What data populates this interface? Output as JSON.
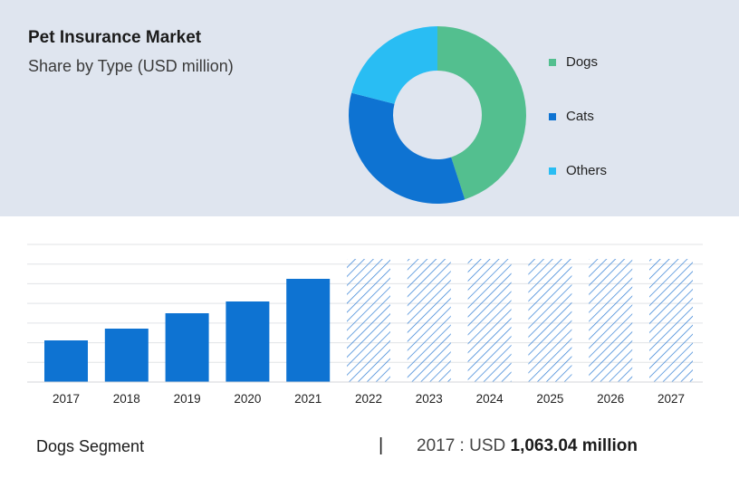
{
  "header": {
    "title": "Pet Insurance Market",
    "subtitle": "Share by Type (USD million)"
  },
  "colors": {
    "dogs": "#53bf8f",
    "cats": "#0e73d2",
    "others": "#29bdf3",
    "bar": "#0e73d2",
    "hatch": "#2f7dd4",
    "panel": "#dfe5ef"
  },
  "legend": [
    {
      "label": "Dogs",
      "color": "#53bf8f"
    },
    {
      "label": "Cats",
      "color": "#0e73d2"
    },
    {
      "label": "Others",
      "color": "#29bdf3"
    }
  ],
  "footer": {
    "segment": "Dogs Segment",
    "divider": "|",
    "year_label": "2017 : USD",
    "value": "1,063.04 million"
  },
  "chart_data": [
    {
      "type": "pie",
      "title": "Share by Type (USD million)",
      "hole": 0.5,
      "categories": [
        "Dogs",
        "Cats",
        "Others"
      ],
      "values": [
        45,
        34,
        21
      ]
    },
    {
      "type": "bar",
      "categories": [
        "2017",
        "2018",
        "2019",
        "2020",
        "2021",
        "2022",
        "2023",
        "2024",
        "2025",
        "2026",
        "2027"
      ],
      "values": [
        46,
        59,
        76,
        89,
        114,
        null,
        null,
        null,
        null,
        null,
        null
      ],
      "forecast": [
        null,
        null,
        null,
        null,
        null,
        136,
        136,
        136,
        136,
        136,
        136
      ],
      "ylim": [
        0,
        152
      ],
      "grid": true
    }
  ]
}
